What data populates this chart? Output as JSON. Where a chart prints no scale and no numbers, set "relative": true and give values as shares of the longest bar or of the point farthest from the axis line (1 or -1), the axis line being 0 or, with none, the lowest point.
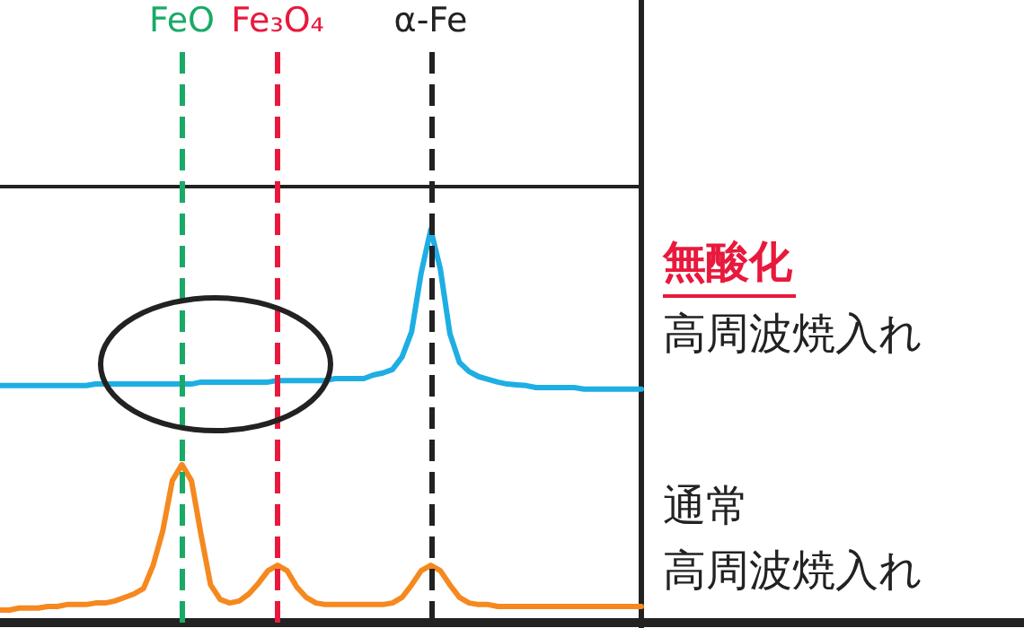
{
  "chart_data": {
    "type": "line",
    "relative": true,
    "grid": false,
    "tick_labels": false,
    "line_style": "solid",
    "categories": [
      null,
      null,
      null,
      null,
      null,
      null,
      null,
      null,
      null,
      null,
      null,
      null,
      null,
      null,
      null,
      null,
      null,
      null,
      null,
      null,
      null,
      null,
      null,
      null,
      null,
      null,
      null,
      null,
      null,
      null,
      null,
      null,
      null,
      null,
      null,
      null,
      null,
      null,
      null,
      null,
      null,
      null,
      null,
      null,
      null,
      null,
      null,
      null,
      null,
      null,
      null,
      null,
      null,
      null,
      null,
      null,
      null,
      null,
      null,
      null,
      null,
      null,
      null,
      null,
      null,
      null,
      null,
      null
    ],
    "series": [
      {
        "color": "#1eaee4",
        "values": [
          0.603,
          0.603,
          0.603,
          0.603,
          0.603,
          0.603,
          0.603,
          0.603,
          0.603,
          0.603,
          0.607,
          0.607,
          0.607,
          0.607,
          0.607,
          0.607,
          0.607,
          0.607,
          0.607,
          0.607,
          0.607,
          0.612,
          0.612,
          0.612,
          0.612,
          0.612,
          0.612,
          0.612,
          0.612,
          0.616,
          0.616,
          0.616,
          0.616,
          0.616,
          0.616,
          0.621,
          0.621,
          0.621,
          0.621,
          0.63,
          0.635,
          0.644,
          0.676,
          0.74,
          0.89,
          1,
          0.9,
          0.735,
          0.662,
          0.639,
          0.626,
          0.619,
          0.612,
          0.607,
          0.605,
          0.603,
          0.598,
          0.598,
          0.598,
          0.598,
          0.598,
          0.594,
          0.594,
          0.594,
          0.594,
          0.594,
          0.594,
          0.594
        ]
      },
      {
        "color": "#f5891f",
        "values": [
          0.032,
          0.032,
          0.037,
          0.037,
          0.037,
          0.041,
          0.041,
          0.046,
          0.046,
          0.046,
          0.05,
          0.05,
          0.055,
          0.064,
          0.073,
          0.087,
          0.146,
          0.233,
          0.361,
          0.402,
          0.361,
          0.224,
          0.096,
          0.059,
          0.05,
          0.055,
          0.073,
          0.1,
          0.132,
          0.146,
          0.132,
          0.091,
          0.064,
          0.05,
          0.046,
          0.046,
          0.046,
          0.046,
          0.046,
          0.046,
          0.046,
          0.05,
          0.064,
          0.096,
          0.132,
          0.146,
          0.132,
          0.096,
          0.064,
          0.05,
          0.046,
          0.046,
          0.041,
          0.041,
          0.041,
          0.041,
          0.041,
          0.041,
          0.041,
          0.041,
          0.041,
          0.041,
          0.041,
          0.041,
          0.041,
          0.041,
          0.041,
          0.041
        ]
      }
    ],
    "annotations": [
      "無酸化",
      "高周波焼入れ",
      "通常",
      "高周波焼入れ"
    ],
    "ref_lines": [
      {
        "axis": "x",
        "label": "FeO",
        "color": "#1aaa68",
        "line_style": "dashed"
      },
      {
        "axis": "x",
        "label": "Fe₃O₄",
        "color": "#e8193c",
        "line_style": "dashed"
      },
      {
        "axis": "x",
        "label": "α-Fe",
        "color": "#222222",
        "line_style": "dashed"
      }
    ]
  }
}
